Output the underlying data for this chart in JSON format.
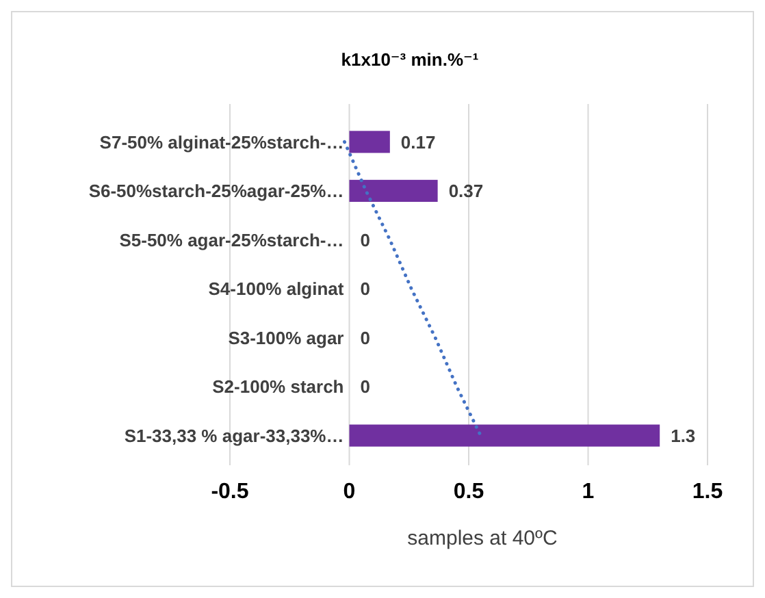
{
  "chart_data": {
    "type": "bar",
    "orientation": "horizontal",
    "title": "k1x10⁻³ min.%⁻¹",
    "xlabel": "samples at 40ºC",
    "categories": [
      "S7-50% alginat-25%starch-…",
      "S6-50%starch-25%agar-25%…",
      "S5-50% agar-25%starch-…",
      "S4-100% alginat",
      "S3-100% agar",
      "S2-100% starch",
      "S1-33,33 % agar-33,33%…"
    ],
    "series": [
      {
        "color": "#7030a0",
        "values": [
          0.17,
          0.37,
          0,
          0,
          0,
          0,
          1.3
        ],
        "value_labels": [
          "0.17",
          "0.37",
          "0",
          "0",
          "0",
          "0",
          "1.3"
        ]
      },
      {
        "type": "line",
        "color": "#4472c4",
        "line_style": "dotted",
        "values": [
          -0.02,
          0.07,
          0.17,
          0.26,
          0.36,
          0.45,
          0.55
        ]
      }
    ],
    "xlim": [
      -0.5,
      1.5
    ],
    "xticks": [
      -0.5,
      0,
      0.5,
      1,
      1.5
    ],
    "grid": "x"
  }
}
